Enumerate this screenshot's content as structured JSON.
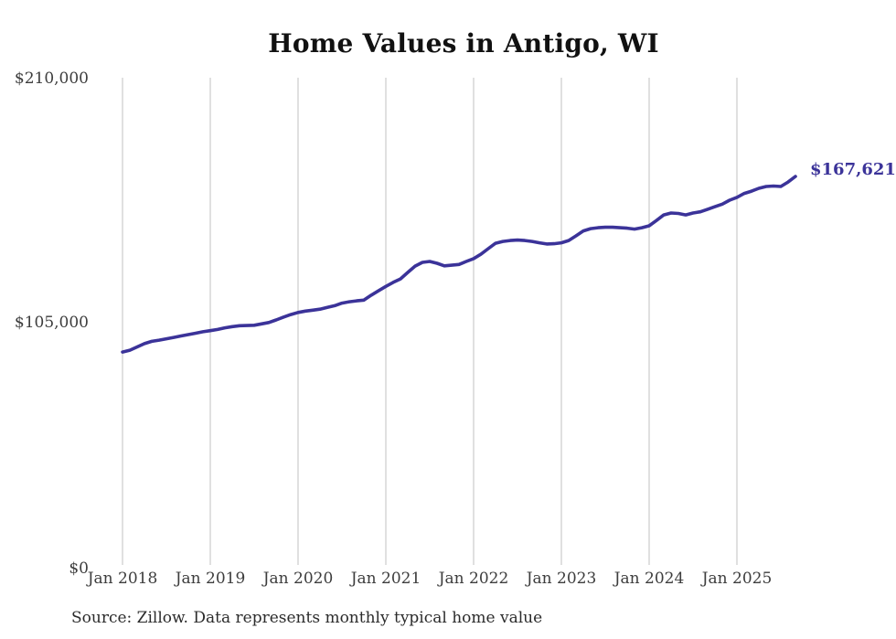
{
  "source_note": "Source: Zillow. Data represents monthly typical home value",
  "chart_data": {
    "type": "line",
    "title": "Home Values in Antigo, WI",
    "series_name": "Monthly typical home value",
    "frequency": "monthly",
    "x_start": "Jan 2018",
    "x_end": "Sep 2025",
    "xlabel": "",
    "ylabel": "",
    "ylim": [
      0,
      210000
    ],
    "grid": "vertical-only",
    "y_tick_labels": [
      "$210,000",
      "$105,000",
      "$0"
    ],
    "y_tick_values": [
      210000,
      105000,
      0
    ],
    "x_tick_labels": [
      "Jan 2018",
      "Jan 2019",
      "Jan 2020",
      "Jan 2021",
      "Jan 2022",
      "Jan 2023",
      "Jan 2024",
      "Jan 2025"
    ],
    "end_label": "$167,621",
    "end_value": 167621,
    "line_color": "#3b3399",
    "grid_color": "#cccccc",
    "values": [
      92200,
      93000,
      94400,
      95800,
      96800,
      97300,
      97900,
      98500,
      99100,
      99700,
      100300,
      100900,
      101400,
      101900,
      102600,
      103100,
      103500,
      103600,
      103700,
      104300,
      104900,
      106000,
      107200,
      108300,
      109200,
      109800,
      110200,
      110600,
      111400,
      112100,
      113200,
      113800,
      114200,
      114500,
      116600,
      118500,
      120400,
      122100,
      123600,
      126400,
      129100,
      130700,
      131100,
      130300,
      129200,
      129500,
      129800,
      131100,
      132300,
      134200,
      136600,
      138900,
      139700,
      140100,
      140300,
      140100,
      139700,
      139100,
      138600,
      138700,
      139100,
      140100,
      142100,
      144200,
      145200,
      145600,
      145800,
      145800,
      145600,
      145400,
      145000,
      145600,
      146400,
      148700,
      151100,
      151900,
      151700,
      151100,
      151900,
      152400,
      153500,
      154600,
      155700,
      157400,
      158600,
      160300,
      161300,
      162500,
      163300,
      163500,
      163300,
      165200,
      167621
    ]
  }
}
